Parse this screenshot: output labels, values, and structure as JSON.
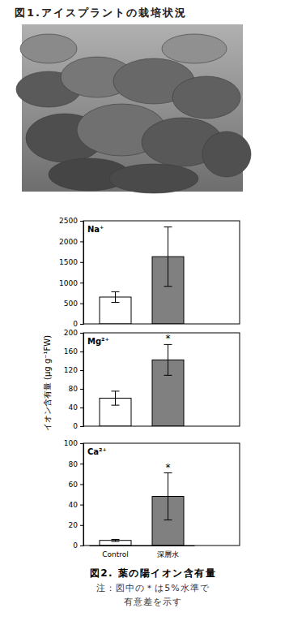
{
  "figure1": {
    "title": "図1.アイスプラントの栽培状況"
  },
  "chart_data": [
    {
      "type": "bar",
      "title": "Na⁺",
      "categories": [
        "Control",
        "深層水"
      ],
      "values": [
        650,
        1630
      ],
      "errors": [
        130,
        720
      ],
      "colors": [
        "#ffffff",
        "#808080"
      ],
      "ylim": [
        0,
        2500
      ],
      "yticks": [
        0,
        500,
        1000,
        1500,
        2000,
        2500
      ],
      "tick_labels": "y"
    },
    {
      "type": "bar",
      "title": "Mg²⁺",
      "ylabel": "イオン含有量 (μg g⁻¹FW)",
      "categories": [
        "Control",
        "深層水"
      ],
      "values": [
        60,
        142
      ],
      "errors": [
        15,
        33
      ],
      "colors": [
        "#ffffff",
        "#808080"
      ],
      "ylim": [
        0,
        200
      ],
      "yticks": [
        0,
        40,
        80,
        120,
        160,
        200
      ],
      "tick_labels": "y",
      "annotations": [
        {
          "text": "*",
          "category": "深層水"
        }
      ]
    },
    {
      "type": "bar",
      "title": "Ca²⁺",
      "categories": [
        "Control",
        "深層水"
      ],
      "values": [
        5,
        48
      ],
      "errors": [
        1,
        23
      ],
      "colors": [
        "#ffffff",
        "#808080"
      ],
      "ylim": [
        0,
        100
      ],
      "yticks": [
        0,
        20,
        40,
        60,
        80,
        100
      ],
      "annotations": [
        {
          "text": "*",
          "category": "深層水"
        }
      ]
    }
  ],
  "caption": {
    "title": "図2. 葉の陽イオン含有量",
    "note": [
      "注：図中の＊は5%水準で",
      "有意差を示す"
    ]
  }
}
